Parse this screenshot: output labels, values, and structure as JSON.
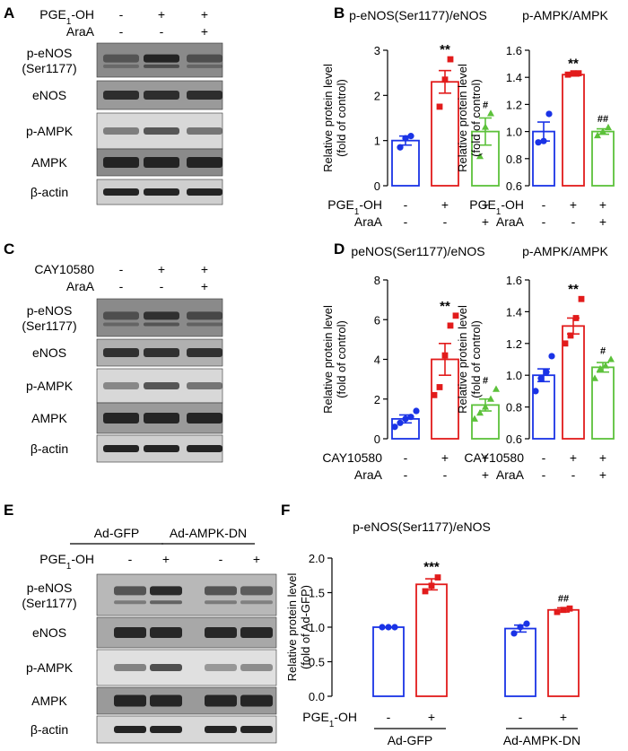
{
  "colors": {
    "control": "#1a33e6",
    "treated": "#e21b1b",
    "inhibitor": "#5cc13a",
    "black": "#000000"
  },
  "panels": {
    "A": {
      "letter": "A",
      "treat_rows": [
        {
          "label": "PGE1-OH",
          "signs": [
            "-",
            "+",
            "+"
          ]
        },
        {
          "label": "AraA",
          "signs": [
            "-",
            "-",
            "+"
          ]
        }
      ],
      "blots": [
        "p-eNOS (Ser1177)",
        "eNOS",
        "p-AMPK",
        "AMPK",
        "β-actin"
      ]
    },
    "C": {
      "letter": "C",
      "treat_rows": [
        {
          "label": "CAY10580",
          "signs": [
            "-",
            "+",
            "+"
          ]
        },
        {
          "label": "AraA",
          "signs": [
            "-",
            "-",
            "+"
          ]
        }
      ],
      "blots": [
        "p-eNOS (Ser1177)",
        "eNOS",
        "p-AMPK",
        "AMPK",
        "β-actin"
      ]
    },
    "E": {
      "letter": "E",
      "groups": [
        "Ad-GFP",
        "Ad-AMPK-DN"
      ],
      "treat_rows": [
        {
          "label": "PGE1-OH",
          "signs": [
            "-",
            "+",
            "-",
            "+"
          ]
        }
      ],
      "blots": [
        "p-eNOS (Ser1177)",
        "eNOS",
        "p-AMPK",
        "AMPK",
        "β-actin"
      ]
    },
    "B": {
      "letter": "B"
    },
    "D": {
      "letter": "D"
    },
    "F": {
      "letter": "F"
    }
  },
  "chart_data": [
    {
      "panel": "B",
      "type": "bar",
      "title": "p-eNOS(Ser1177)/eNOS",
      "ylabel": "Relative protein level (fold of control)",
      "ylim": [
        0,
        3
      ],
      "yticks": [
        0,
        1,
        2,
        3
      ],
      "groups": [
        "control",
        "PGE1-OH",
        "PGE1-OH + AraA"
      ],
      "means": [
        1.0,
        2.3,
        1.2
      ],
      "sem": [
        0.1,
        0.25,
        0.3
      ],
      "points": [
        [
          0.85,
          1.05,
          1.1
        ],
        [
          1.75,
          2.35,
          2.8
        ],
        [
          0.65,
          1.3,
          1.6
        ]
      ],
      "annotations": [
        "",
        "**",
        "#"
      ],
      "treat_rows": [
        {
          "label": "PGE1-OH",
          "signs": [
            "-",
            "+",
            "+"
          ]
        },
        {
          "label": "AraA",
          "signs": [
            "-",
            "-",
            "+"
          ]
        }
      ]
    },
    {
      "panel": "B",
      "type": "bar",
      "title": "p-AMPK/AMPK",
      "ylabel": "Relative protein level (fold of control)",
      "ylim": [
        0.6,
        1.6
      ],
      "yticks": [
        0.6,
        0.8,
        1.0,
        1.2,
        1.4,
        1.6
      ],
      "groups": [
        "control",
        "PGE1-OH",
        "PGE1-OH + AraA"
      ],
      "means": [
        1.0,
        1.42,
        1.0
      ],
      "sem": [
        0.07,
        0.01,
        0.02
      ],
      "points": [
        [
          0.92,
          0.93,
          1.13
        ],
        [
          1.42,
          1.43,
          1.43
        ],
        [
          0.97,
          1.0,
          1.03
        ]
      ],
      "annotations": [
        "",
        "**",
        "##"
      ],
      "treat_rows": [
        {
          "label": "PGE1-OH",
          "signs": [
            "-",
            "+",
            "+"
          ]
        },
        {
          "label": "AraA",
          "signs": [
            "-",
            "-",
            "+"
          ]
        }
      ]
    },
    {
      "panel": "D",
      "type": "bar",
      "title": "peNOS(Ser1177)/eNOS",
      "ylabel": "Relative protein level (fold of control)",
      "ylim": [
        0,
        8
      ],
      "yticks": [
        0,
        2,
        4,
        6,
        8
      ],
      "groups": [
        "control",
        "CAY10580",
        "CAY10580 + AraA"
      ],
      "means": [
        1.0,
        4.0,
        1.7
      ],
      "sem": [
        0.2,
        0.8,
        0.3
      ],
      "points": [
        [
          0.6,
          0.8,
          1.0,
          1.1,
          1.4
        ],
        [
          2.2,
          2.6,
          4.2,
          5.7,
          6.2
        ],
        [
          1.0,
          1.3,
          1.6,
          2.0,
          2.5
        ]
      ],
      "annotations": [
        "",
        "**",
        "#"
      ],
      "treat_rows": [
        {
          "label": "CAY10580",
          "signs": [
            "-",
            "+",
            "+"
          ]
        },
        {
          "label": "AraA",
          "signs": [
            "-",
            "-",
            "+"
          ]
        }
      ]
    },
    {
      "panel": "D",
      "type": "bar",
      "title": "p-AMPK/AMPK",
      "ylabel": "Relative protein level (fold of control)",
      "ylim": [
        0.6,
        1.6
      ],
      "yticks": [
        0.6,
        0.8,
        1.0,
        1.2,
        1.4,
        1.6
      ],
      "groups": [
        "control",
        "CAY10580",
        "CAY10580 + AraA"
      ],
      "means": [
        1.0,
        1.31,
        1.05
      ],
      "sem": [
        0.04,
        0.05,
        0.03
      ],
      "points": [
        [
          0.9,
          0.98,
          1.02,
          1.12
        ],
        [
          1.2,
          1.25,
          1.36,
          1.48
        ],
        [
          0.98,
          1.04,
          1.06,
          1.1
        ]
      ],
      "annotations": [
        "",
        "**",
        "#"
      ],
      "treat_rows": [
        {
          "label": "CAY10580",
          "signs": [
            "-",
            "+",
            "+"
          ]
        },
        {
          "label": "AraA",
          "signs": [
            "-",
            "-",
            "+"
          ]
        }
      ]
    },
    {
      "panel": "F",
      "type": "bar",
      "title": "p-eNOS(Ser1177)/eNOS",
      "ylabel": "Relative protein level (fold of Ad-GFP)",
      "ylim": [
        0,
        2.0
      ],
      "yticks": [
        0.0,
        0.5,
        1.0,
        1.5,
        2.0
      ],
      "groups": [
        "Ad-GFP",
        "Ad-AMPK-DN"
      ],
      "treat_label": "PGE1-OH",
      "means": [
        1.0,
        1.62,
        0.98,
        1.25
      ],
      "sem": [
        0.0,
        0.08,
        0.05,
        0.03
      ],
      "points": [
        [
          1.0,
          1.0,
          1.0
        ],
        [
          1.52,
          1.6,
          1.72
        ],
        [
          0.91,
          1.0,
          1.05
        ],
        [
          1.22,
          1.25,
          1.27
        ]
      ],
      "signs": [
        "-",
        "+",
        "-",
        "+"
      ],
      "annotations": [
        "",
        "***",
        "",
        "##"
      ]
    }
  ]
}
